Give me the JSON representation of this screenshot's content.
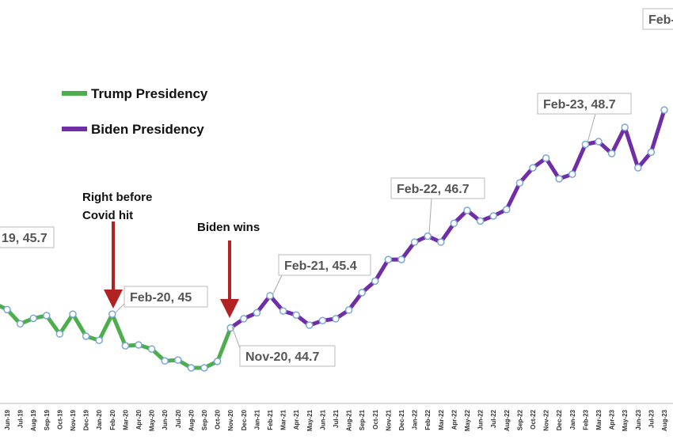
{
  "chart_data": {
    "type": "line",
    "categories": [
      null,
      "Jun-19",
      "Jul-19",
      "Aug-19",
      "Sep-19",
      "Oct-19",
      "Nov-19",
      "Dec-19",
      "Jan-20",
      "Feb-20",
      "Mar-20",
      "Apr-20",
      "May-20",
      "Jun-20",
      "Jul-20",
      "Aug-20",
      "Sep-20",
      "Oct-20",
      "Nov-20",
      "Dec-20",
      "Jan-21",
      "Feb-21",
      "Mar-21",
      "Apr-21",
      "May-21",
      "Jun-21",
      "Jul-21",
      "Aug-21",
      "Sep-21",
      "Oct-21",
      "Nov-21",
      "Dec-21",
      "Jan-22",
      "Feb-22",
      "Mar-22",
      "Apr-22",
      "May-22",
      "Jun-22",
      "Jul-22",
      "Aug-22",
      "Sep-22",
      "Oct-22",
      "Nov-22",
      "Dec-22",
      "Jan-23",
      "Feb-23",
      "Mar-23",
      "Apr-23",
      "May-23",
      "Jun-23",
      "Jul-23",
      "Aug-23"
    ],
    "series": [
      {
        "name": "Trump Presidency",
        "color": "#4cae4c",
        "values": [
          45.24,
          45.1,
          44.79,
          44.91,
          44.97,
          44.57,
          45.0,
          44.52,
          44.43,
          45,
          44.31,
          44.33,
          44.24,
          43.98,
          44.0,
          43.83,
          43.83,
          43.97,
          44.7,
          null,
          null,
          null,
          null,
          null,
          null,
          null,
          null,
          null,
          null,
          null,
          null,
          null,
          null,
          null,
          null,
          null,
          null,
          null,
          null,
          null,
          null,
          null,
          null,
          null,
          null,
          null,
          null,
          null,
          null,
          null,
          null,
          null
        ]
      },
      {
        "name": "Biden Presidency",
        "color": "#6f2da8",
        "values": [
          null,
          null,
          null,
          null,
          null,
          null,
          null,
          null,
          null,
          null,
          null,
          null,
          null,
          null,
          null,
          null,
          null,
          null,
          44.7,
          44.9,
          45.03,
          45.4,
          45.07,
          44.98,
          44.76,
          44.86,
          44.9,
          45.09,
          45.47,
          45.72,
          46.19,
          46.19,
          46.57,
          46.7,
          46.57,
          46.98,
          47.26,
          47.03,
          47.14,
          47.28,
          47.86,
          48.19,
          48.4,
          47.95,
          48.05,
          48.7,
          48.76,
          48.5,
          49.07,
          48.19,
          48.53,
          49.45
        ]
      }
    ],
    "point_labels": [
      "19,  45.7",
      "Feb-20,  45",
      "Nov-20,  44.7",
      "Feb-21,  45.4",
      "Feb-22,  46.7",
      "Feb-23,  48.7",
      "Feb-"
    ],
    "annotations": {
      "covid": [
        "Right before",
        "Covid hit"
      ],
      "election": "Biden wins"
    },
    "marker_color": "#7aa7d6"
  }
}
